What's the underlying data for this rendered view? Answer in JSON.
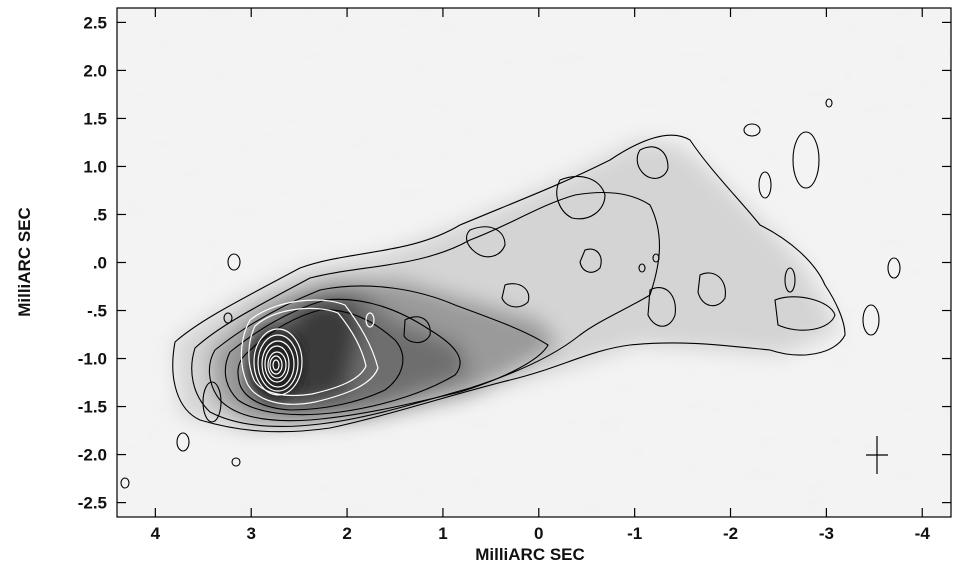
{
  "chart_data": {
    "type": "heatmap",
    "title": "",
    "xlabel": "MilliARC SEC",
    "ylabel": "MilliARC SEC",
    "xlim": [
      4.4,
      -4.3
    ],
    "ylim": [
      -2.65,
      2.65
    ],
    "x_ticks": [
      4,
      3,
      2,
      1,
      0,
      -1,
      -2,
      -3,
      -4
    ],
    "x_tick_labels": [
      "4",
      "3",
      "2",
      "1",
      "0",
      "-1",
      "-2",
      "-3",
      "-4"
    ],
    "y_ticks": [
      2.5,
      2.0,
      1.5,
      1.0,
      0.5,
      0.0,
      -0.5,
      -1.0,
      -1.5,
      -2.0,
      -2.5
    ],
    "y_tick_labels": [
      "2.5",
      "2.0",
      "1.5",
      "1.0",
      ".5",
      ".0",
      "-.5",
      "-1.0",
      "-1.5",
      "-2.0",
      "-2.5"
    ],
    "colormap": "grayscale",
    "grid": false,
    "contour_color_outer": "#000000",
    "contour_color_core": "#ffffff",
    "core_position": [
      2.75,
      -1.05
    ],
    "beam_marker_position": [
      -3.55,
      -2.0
    ]
  }
}
